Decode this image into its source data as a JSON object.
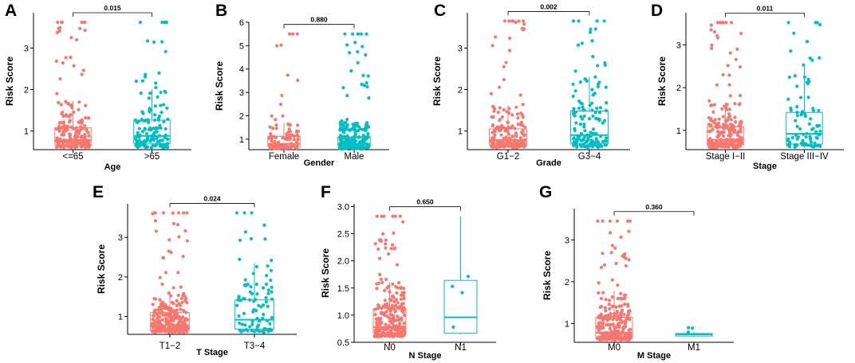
{
  "colors": {
    "group1": "#f8766d",
    "group2": "#00bfc4"
  },
  "chart_data": [
    {
      "type": "boxplot",
      "label": "A",
      "xlabel": "Age",
      "ylabel": "Risk Score",
      "categories": [
        "<=65",
        ">65"
      ],
      "ylim": [
        0.55,
        3.85
      ],
      "yticks": [
        1,
        2,
        3
      ],
      "tick_labels": [
        "1",
        "2",
        "3"
      ],
      "p_value": "0.015",
      "boxes": [
        {
          "q1": 0.66,
          "median": 0.78,
          "q3": 1.08,
          "whisker_low": 0.6,
          "whisker_high": 1.72,
          "max": 3.62,
          "n": 210
        },
        {
          "q1": 0.7,
          "median": 0.88,
          "q3": 1.26,
          "whisker_low": 0.6,
          "whisker_high": 2.0,
          "max": 3.62,
          "n": 140
        }
      ]
    },
    {
      "type": "boxplot",
      "label": "B",
      "xlabel": "Gender",
      "ylabel": "Risk Score",
      "categories": [
        "Female",
        "Male"
      ],
      "ylim": [
        0.55,
        6.0
      ],
      "yticks": [
        1,
        2,
        3,
        4,
        5,
        6
      ],
      "tick_labels": [
        "1",
        "2",
        "3",
        "4",
        "5",
        "6"
      ],
      "p_value": "0.880",
      "boxes": [
        {
          "q1": 0.68,
          "median": 0.8,
          "q3": 1.12,
          "whisker_low": 0.6,
          "whisker_high": 1.7,
          "max": 5.5,
          "n": 110
        },
        {
          "q1": 0.68,
          "median": 0.8,
          "q3": 1.1,
          "whisker_low": 0.6,
          "whisker_high": 1.72,
          "max": 5.5,
          "n": 240
        }
      ]
    },
    {
      "type": "boxplot",
      "label": "C",
      "xlabel": "Grade",
      "ylabel": "Risk Score",
      "categories": [
        "G1−2",
        "G3−4"
      ],
      "ylim": [
        0.55,
        3.85
      ],
      "yticks": [
        1,
        2,
        3
      ],
      "tick_labels": [
        "1",
        "2",
        "3"
      ],
      "p_value": "0.002",
      "boxes": [
        {
          "q1": 0.66,
          "median": 0.78,
          "q3": 1.05,
          "whisker_low": 0.6,
          "whisker_high": 1.62,
          "max": 3.65,
          "n": 200
        },
        {
          "q1": 0.7,
          "median": 0.9,
          "q3": 1.48,
          "whisker_low": 0.6,
          "whisker_high": 2.3,
          "max": 3.65,
          "n": 150
        }
      ]
    },
    {
      "type": "boxplot",
      "label": "D",
      "xlabel": "Stage",
      "ylabel": "Risk Score",
      "categories": [
        "Stage I−II",
        "Stage III−IV"
      ],
      "ylim": [
        0.55,
        3.75
      ],
      "yticks": [
        1,
        2,
        3
      ],
      "tick_labels": [
        "1",
        "2",
        "3"
      ],
      "p_value": "0.011",
      "boxes": [
        {
          "q1": 0.66,
          "median": 0.78,
          "q3": 1.08,
          "whisker_low": 0.6,
          "whisker_high": 1.65,
          "max": 3.52,
          "n": 250
        },
        {
          "q1": 0.68,
          "median": 0.92,
          "q3": 1.42,
          "whisker_low": 0.6,
          "whisker_high": 2.55,
          "max": 3.52,
          "n": 90
        }
      ]
    },
    {
      "type": "boxplot",
      "label": "E",
      "xlabel": "T Stage",
      "ylabel": "Risk Score",
      "categories": [
        "T1−2",
        "T3−4"
      ],
      "ylim": [
        0.55,
        3.85
      ],
      "yticks": [
        1,
        2,
        3
      ],
      "tick_labels": [
        "1",
        "2",
        "3"
      ],
      "p_value": "0.024",
      "boxes": [
        {
          "q1": 0.66,
          "median": 0.78,
          "q3": 1.1,
          "whisker_low": 0.6,
          "whisker_high": 1.65,
          "max": 3.62,
          "n": 260
        },
        {
          "q1": 0.68,
          "median": 0.92,
          "q3": 1.42,
          "whisker_low": 0.6,
          "whisker_high": 2.35,
          "max": 3.62,
          "n": 90
        }
      ]
    },
    {
      "type": "boxplot",
      "label": "F",
      "xlabel": "N Stage",
      "ylabel": "Risk Score",
      "categories": [
        "N0",
        "N1"
      ],
      "ylim": [
        0.5,
        3.05
      ],
      "yticks": [
        0.5,
        1.0,
        1.5,
        2.0,
        2.5,
        3.0
      ],
      "tick_labels": [
        "0.5",
        "1.0",
        "1.5",
        "2.0",
        "2.5",
        "3.0"
      ],
      "p_value": "0.650",
      "boxes": [
        {
          "q1": 0.66,
          "median": 0.78,
          "q3": 1.12,
          "whisker_low": 0.6,
          "whisker_high": 1.6,
          "max": 2.82,
          "n": 260
        },
        {
          "q1": 0.67,
          "median": 0.96,
          "q3": 1.64,
          "whisker_low": 0.65,
          "whisker_high": 2.82,
          "max": 2.82,
          "n": 4
        }
      ]
    },
    {
      "type": "boxplot",
      "label": "G",
      "xlabel": "M Stage",
      "ylabel": "Risk Score",
      "categories": [
        "M0",
        "M1"
      ],
      "ylim": [
        0.55,
        3.75
      ],
      "yticks": [
        1,
        2,
        3
      ],
      "tick_labels": [
        "1",
        "2",
        "3"
      ],
      "p_value": "0.360",
      "boxes": [
        {
          "q1": 0.66,
          "median": 0.78,
          "q3": 1.15,
          "whisker_low": 0.6,
          "whisker_high": 1.78,
          "max": 3.45,
          "n": 260
        },
        {
          "q1": 0.7,
          "median": 0.74,
          "q3": 0.76,
          "whisker_low": 0.68,
          "whisker_high": 0.8,
          "max": 0.9,
          "n": 3
        }
      ]
    }
  ]
}
